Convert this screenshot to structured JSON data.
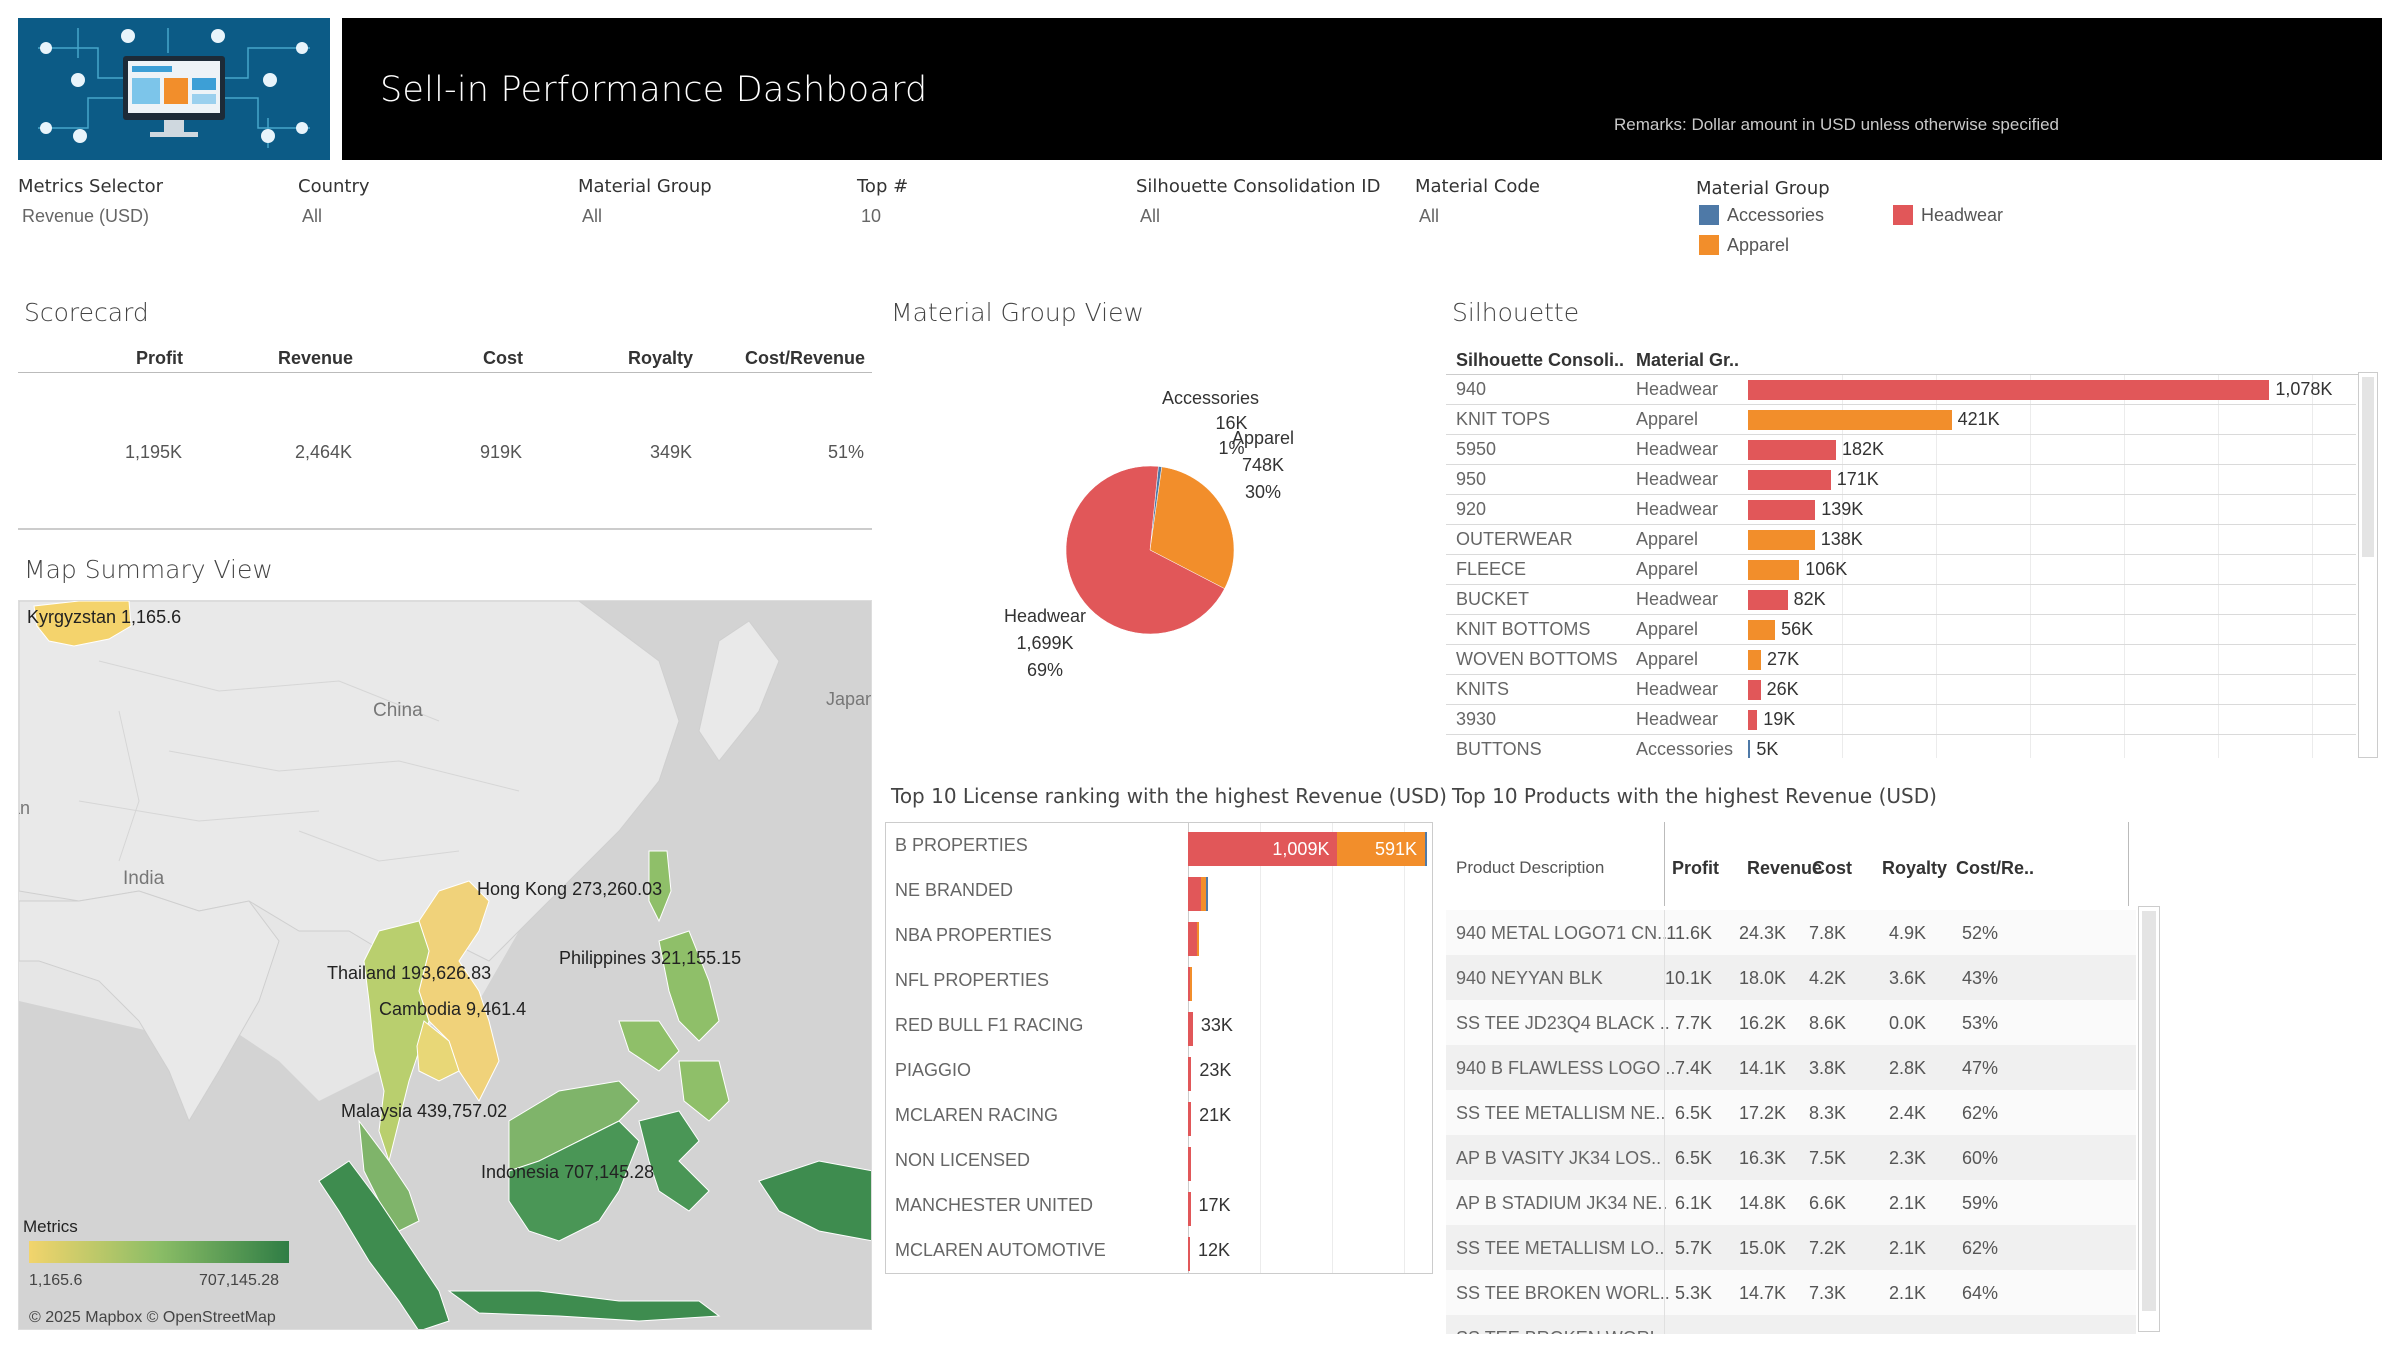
{
  "header": {
    "title": "Sell-in Performance Dashboard",
    "remark": "Remarks: Dollar amount in USD unless otherwise specified"
  },
  "filters": [
    {
      "label": "Metrics Selector",
      "value": "Revenue (USD)"
    },
    {
      "label": "Country",
      "value": "All"
    },
    {
      "label": "Material Group",
      "value": "All"
    },
    {
      "label": "Top #",
      "value": "10"
    },
    {
      "label": "Silhouette Consolidation ID",
      "value": "All"
    },
    {
      "label": "Material Code",
      "value": "All"
    }
  ],
  "legend": {
    "title": "Material Group",
    "items": [
      {
        "label": "Accessories",
        "color": "#4e79a7"
      },
      {
        "label": "Headwear",
        "color": "#e15759"
      },
      {
        "label": "Apparel",
        "color": "#f28e2b"
      }
    ]
  },
  "scorecard": {
    "title": "Scorecard",
    "headers": [
      "Profit",
      "Revenue",
      "Cost",
      "Royalty",
      "Cost/Revenue"
    ],
    "values": [
      "1,195K",
      "2,464K",
      "919K",
      "349K",
      "51%"
    ]
  },
  "map": {
    "title": "Map Summary View",
    "place_labels": [
      "China",
      "India",
      "Japan",
      "Pakistan"
    ],
    "countries": [
      {
        "label": "Kyrgyzstan 1,165.6",
        "value": 1165.6
      },
      {
        "label": "Hong Kong 273,260.03",
        "value": 273260.03
      },
      {
        "label": "Thailand 193,626.83",
        "value": 193626.83
      },
      {
        "label": "Philippines 321,155.15",
        "value": 321155.15
      },
      {
        "label": "Cambodia 9,461.4",
        "value": 9461.4
      },
      {
        "label": "Malaysia 439,757.02",
        "value": 439757.02
      },
      {
        "label": "Indonesia 707,145.28",
        "value": 707145.28
      }
    ],
    "legend_title": "Metrics",
    "legend_min": "1,165.6",
    "legend_max": "707,145.28",
    "attribution": "© 2025 Mapbox © OpenStreetMap"
  },
  "chart_data": [
    {
      "type": "pie",
      "title": "Material Group View",
      "slices": [
        {
          "name": "Accessories",
          "value_label": "16K",
          "pct_label": "1%",
          "value": 16,
          "pct": 0.01,
          "color": "#4e79a7"
        },
        {
          "name": "Apparel",
          "value_label": "748K",
          "pct_label": "30%",
          "value": 748,
          "pct": 0.3,
          "color": "#f28e2b"
        },
        {
          "name": "Headwear",
          "value_label": "1,699K",
          "pct_label": "69%",
          "value": 1699,
          "pct": 0.69,
          "color": "#e15759"
        }
      ]
    },
    {
      "type": "bar",
      "title": "Silhouette",
      "columns": [
        "Silhouette Consoli..",
        "Material Gr.."
      ],
      "xlim": [
        0,
        1220
      ],
      "rows": [
        {
          "name": "940",
          "group": "Headwear",
          "value": 1078,
          "label": "1,078K"
        },
        {
          "name": "KNIT TOPS",
          "group": "Apparel",
          "value": 421,
          "label": "421K"
        },
        {
          "name": "5950",
          "group": "Headwear",
          "value": 182,
          "label": "182K"
        },
        {
          "name": "950",
          "group": "Headwear",
          "value": 171,
          "label": "171K"
        },
        {
          "name": "920",
          "group": "Headwear",
          "value": 139,
          "label": "139K"
        },
        {
          "name": "OUTERWEAR",
          "group": "Apparel",
          "value": 138,
          "label": "138K"
        },
        {
          "name": "FLEECE",
          "group": "Apparel",
          "value": 106,
          "label": "106K"
        },
        {
          "name": "BUCKET",
          "group": "Headwear",
          "value": 82,
          "label": "82K"
        },
        {
          "name": "KNIT BOTTOMS",
          "group": "Apparel",
          "value": 56,
          "label": "56K"
        },
        {
          "name": "WOVEN BOTTOMS",
          "group": "Apparel",
          "value": 27,
          "label": "27K"
        },
        {
          "name": "KNITS",
          "group": "Headwear",
          "value": 26,
          "label": "26K"
        },
        {
          "name": "3930",
          "group": "Headwear",
          "value": 19,
          "label": "19K"
        },
        {
          "name": "BUTTONS",
          "group": "Accessories",
          "value": 5,
          "label": "5K"
        }
      ]
    },
    {
      "type": "bar",
      "title": "Top 10 License ranking with the highest  Revenue (USD)",
      "xlim": [
        0,
        1620
      ],
      "rows": [
        {
          "name": "B PROPERTIES",
          "headwear": 1009,
          "apparel": 591,
          "accessories": 8,
          "headwear_label": "1,009K",
          "apparel_label": "591K",
          "label": ""
        },
        {
          "name": "NE BRANDED",
          "headwear": 88,
          "apparel": 32,
          "accessories": 3,
          "label": ""
        },
        {
          "name": "NBA PROPERTIES",
          "headwear": 58,
          "apparel": 6,
          "accessories": 0,
          "label": ""
        },
        {
          "name": "NFL PROPERTIES",
          "headwear": 12,
          "apparel": 12,
          "accessories": 0,
          "label": ""
        },
        {
          "name": "RED BULL F1 RACING",
          "headwear": 33,
          "apparel": 0,
          "accessories": 0,
          "label": "33K"
        },
        {
          "name": "PIAGGIO",
          "headwear": 23,
          "apparel": 0,
          "accessories": 0,
          "label": "23K"
        },
        {
          "name": "MCLAREN RACING",
          "headwear": 21,
          "apparel": 0,
          "accessories": 0,
          "label": "21K"
        },
        {
          "name": "NON LICENSED",
          "headwear": 18,
          "apparel": 0,
          "accessories": 0,
          "label": ""
        },
        {
          "name": "MANCHESTER UNITED",
          "headwear": 17,
          "apparel": 0,
          "accessories": 0,
          "label": "17K"
        },
        {
          "name": "MCLAREN AUTOMOTIVE",
          "headwear": 12,
          "apparel": 0,
          "accessories": 0,
          "label": "12K"
        }
      ]
    },
    {
      "type": "table",
      "title": "Top 10  Products with the highest Revenue (USD)",
      "columns": [
        "Product Description",
        "Profit",
        "Revenue",
        "Cost",
        "Royalty",
        "Cost/Re.."
      ],
      "rows": [
        [
          "940 METAL LOGO71 CN..",
          "11.6K",
          "24.3K",
          "7.8K",
          "4.9K",
          "52%"
        ],
        [
          "940 NEYYAN BLK",
          "10.1K",
          "18.0K",
          "4.2K",
          "3.6K",
          "43%"
        ],
        [
          "SS TEE JD23Q4 BLACK ..",
          "7.7K",
          "16.2K",
          "8.6K",
          "0.0K",
          "53%"
        ],
        [
          "940 B FLAWLESS LOGO ..",
          "7.4K",
          "14.1K",
          "3.8K",
          "2.8K",
          "47%"
        ],
        [
          "SS TEE METALLISM NE..",
          "6.5K",
          "17.2K",
          "8.3K",
          "2.4K",
          "62%"
        ],
        [
          "AP B VASITY JK34 LOS..",
          "6.5K",
          "16.3K",
          "7.5K",
          "2.3K",
          "60%"
        ],
        [
          "AP B STADIUM JK34 NE..",
          "6.1K",
          "14.8K",
          "6.6K",
          "2.1K",
          "59%"
        ],
        [
          "SS TEE METALLISM LO..",
          "5.7K",
          "15.0K",
          "7.2K",
          "2.1K",
          "62%"
        ],
        [
          "SS TEE BROKEN WORL..",
          "5.3K",
          "14.7K",
          "7.3K",
          "2.1K",
          "64%"
        ],
        [
          "SS TEE BROKEN WORL..",
          "",
          "",
          "",
          "",
          ""
        ]
      ]
    }
  ]
}
